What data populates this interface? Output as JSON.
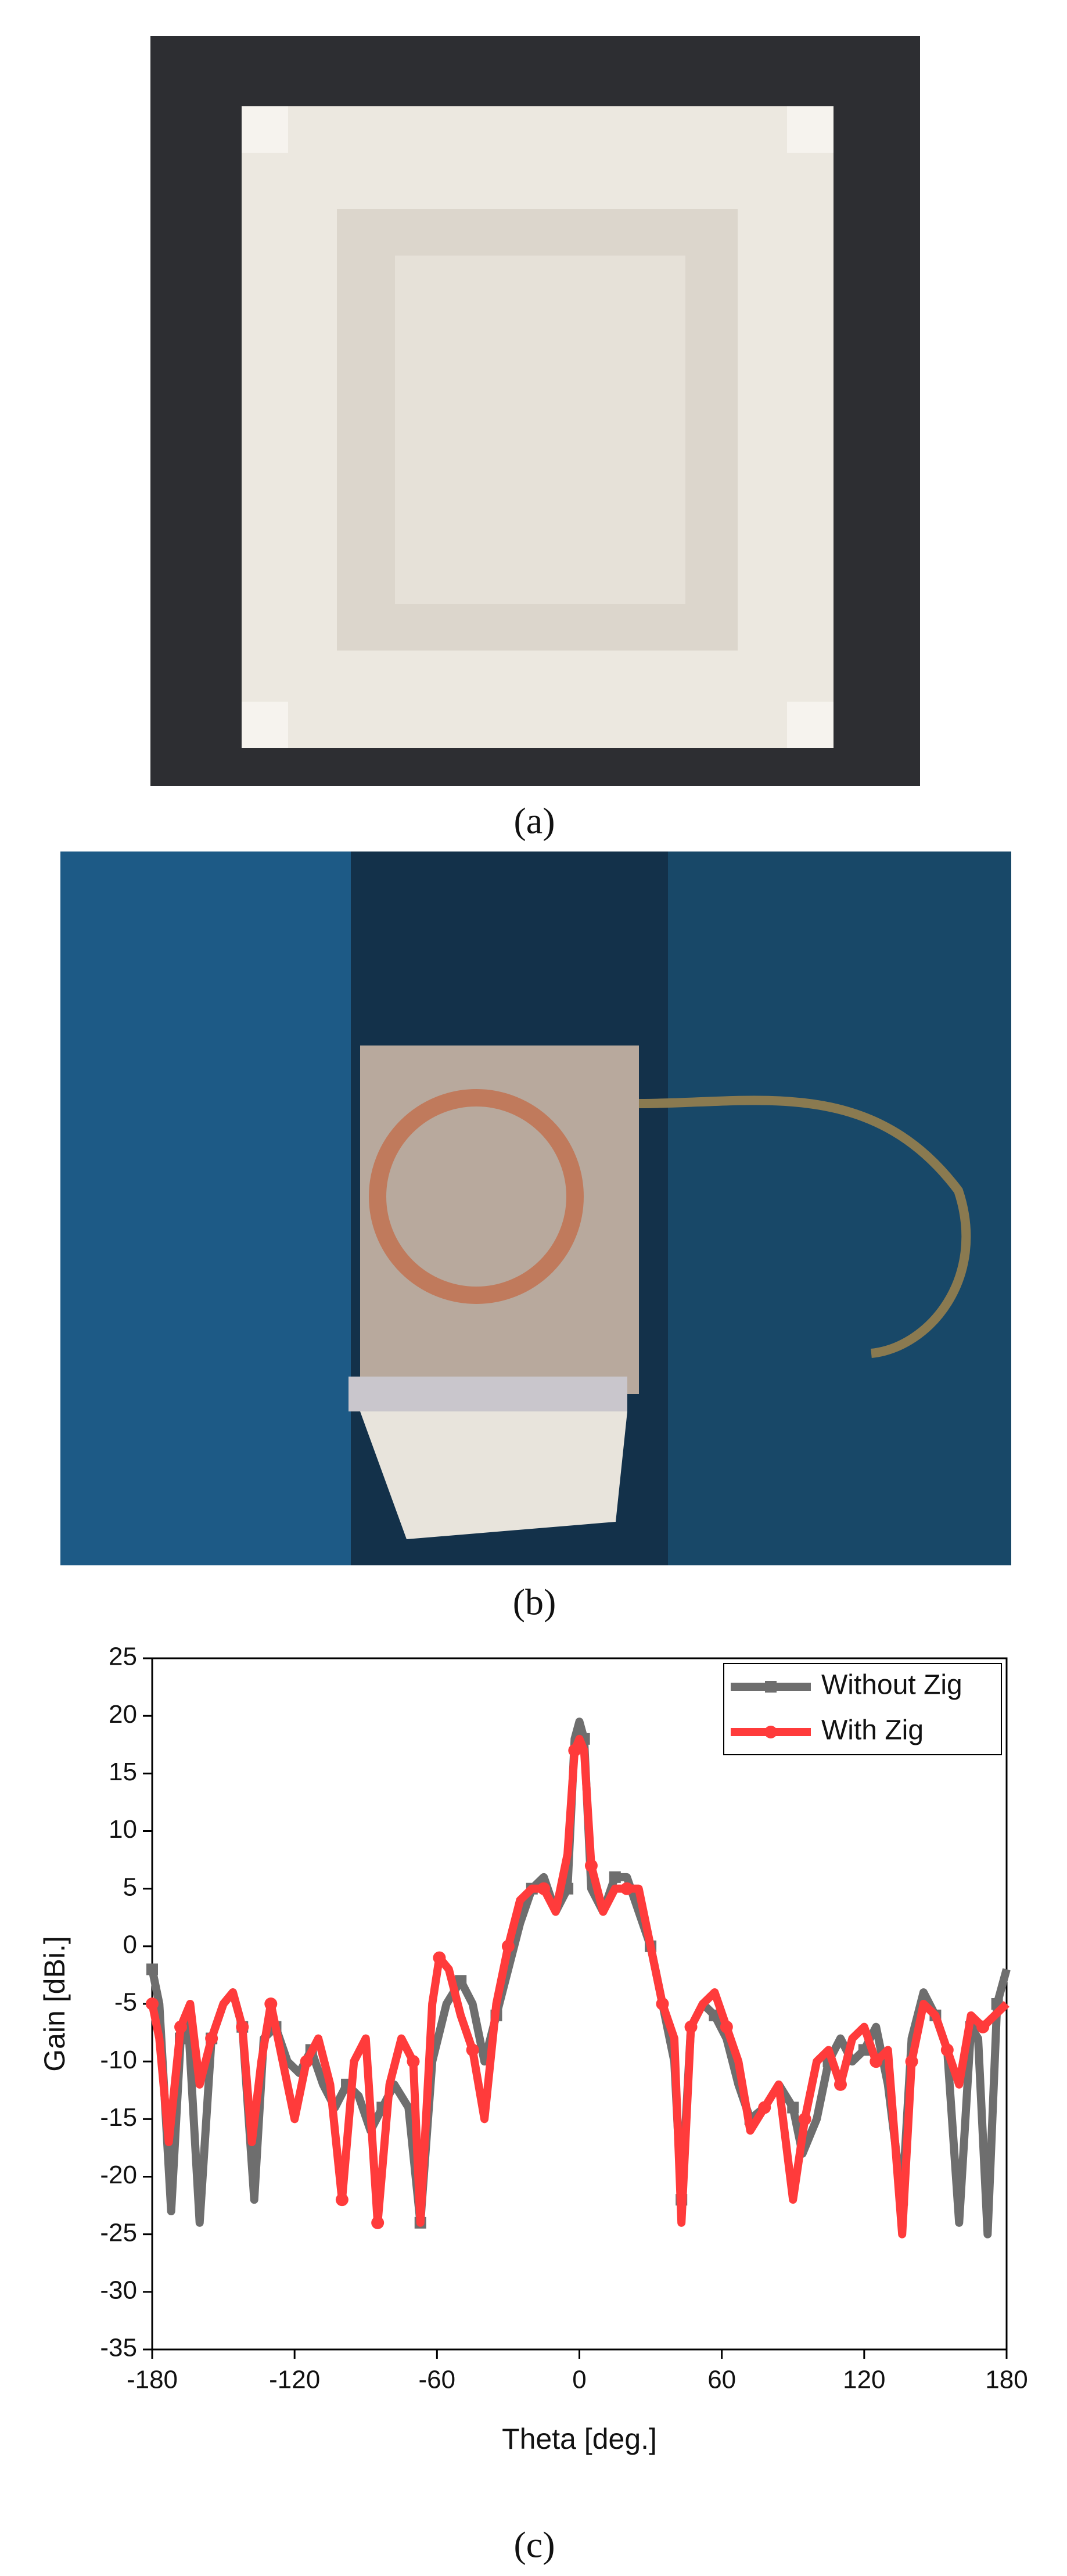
{
  "captions": [
    "(a)",
    "(b)"
  ],
  "chart_data": {
    "type": "line",
    "caption": "(c)",
    "xlabel": "Theta [deg.]",
    "ylabel": "Gain [dBi.]",
    "xlim": [
      -180,
      180
    ],
    "xticks": [
      -180,
      -120,
      -60,
      0,
      60,
      120,
      180
    ],
    "ylim": [
      -35,
      25
    ],
    "yticks": [
      -35,
      -30,
      -25,
      -20,
      -15,
      -10,
      -5,
      0,
      5,
      10,
      15,
      20,
      25
    ],
    "legend": "upper right",
    "series": [
      {
        "name": "Without Zig",
        "color": "#6e6e6e",
        "marker": "square",
        "x": [
          -180,
          -177,
          -172,
          -168,
          -165,
          -160,
          -155,
          -150,
          -146,
          -142,
          -137,
          -133,
          -128,
          -123,
          -118,
          -113,
          -108,
          -103,
          -98,
          -93,
          -88,
          -83,
          -78,
          -72,
          -67,
          -62,
          -56,
          -50,
          -45,
          -40,
          -35,
          -30,
          -25,
          -20,
          -15,
          -10,
          -5,
          -2,
          0,
          2,
          5,
          10,
          15,
          20,
          25,
          30,
          35,
          40,
          43,
          47,
          52,
          57,
          62,
          67,
          72,
          78,
          84,
          90,
          94,
          100,
          105,
          110,
          115,
          120,
          125,
          130,
          136,
          140,
          145,
          150,
          155,
          160,
          165,
          168,
          172,
          176,
          180
        ],
        "values": [
          -2,
          -5,
          -23,
          -8,
          -6,
          -24,
          -8,
          -5,
          -4,
          -7,
          -22,
          -8,
          -7,
          -10,
          -11,
          -9,
          -12,
          -14,
          -12,
          -13,
          -16,
          -14,
          -12,
          -14,
          -24,
          -10,
          -5,
          -3,
          -5,
          -10,
          -6,
          -2,
          2,
          5,
          6,
          3,
          5,
          18,
          19.5,
          18,
          5,
          3,
          6,
          6,
          3,
          0,
          -5,
          -10,
          -22,
          -7,
          -5,
          -6,
          -8,
          -12,
          -15,
          -14,
          -12,
          -14,
          -18,
          -15,
          -10,
          -8,
          -10,
          -9,
          -7,
          -12,
          -22,
          -8,
          -4,
          -6,
          -9,
          -24,
          -7,
          -8,
          -25,
          -5,
          -2
        ]
      },
      {
        "name": "With Zig",
        "color": "#ff3b3b",
        "marker": "circle",
        "x": [
          -180,
          -177,
          -173,
          -168,
          -164,
          -160,
          -155,
          -150,
          -146,
          -142,
          -138,
          -134,
          -130,
          -125,
          -120,
          -115,
          -110,
          -105,
          -100,
          -95,
          -90,
          -85,
          -80,
          -75,
          -70,
          -67,
          -62,
          -59,
          -55,
          -50,
          -45,
          -40,
          -35,
          -30,
          -25,
          -20,
          -15,
          -10,
          -5,
          -2,
          0,
          2,
          5,
          10,
          15,
          20,
          25,
          30,
          35,
          40,
          43,
          47,
          52,
          57,
          62,
          67,
          72,
          78,
          84,
          90,
          95,
          100,
          105,
          110,
          115,
          120,
          125,
          130,
          136,
          140,
          145,
          150,
          155,
          160,
          165,
          170,
          175,
          180
        ],
        "values": [
          -5,
          -8,
          -17,
          -7,
          -5,
          -12,
          -8,
          -5,
          -4,
          -7,
          -17,
          -10,
          -5,
          -10,
          -15,
          -10,
          -8,
          -12,
          -22,
          -10,
          -8,
          -24,
          -12,
          -8,
          -10,
          -24,
          -5,
          -1,
          -2,
          -6,
          -9,
          -15,
          -5,
          0,
          4,
          5,
          5,
          3,
          8,
          17,
          18,
          17,
          7,
          3,
          5,
          5,
          5,
          0,
          -5,
          -8,
          -24,
          -7,
          -5,
          -4,
          -7,
          -10,
          -16,
          -14,
          -12,
          -22,
          -15,
          -10,
          -9,
          -12,
          -8,
          -7,
          -10,
          -9,
          -25,
          -10,
          -5,
          -6,
          -9,
          -12,
          -6,
          -7,
          -6,
          -5
        ]
      }
    ]
  }
}
